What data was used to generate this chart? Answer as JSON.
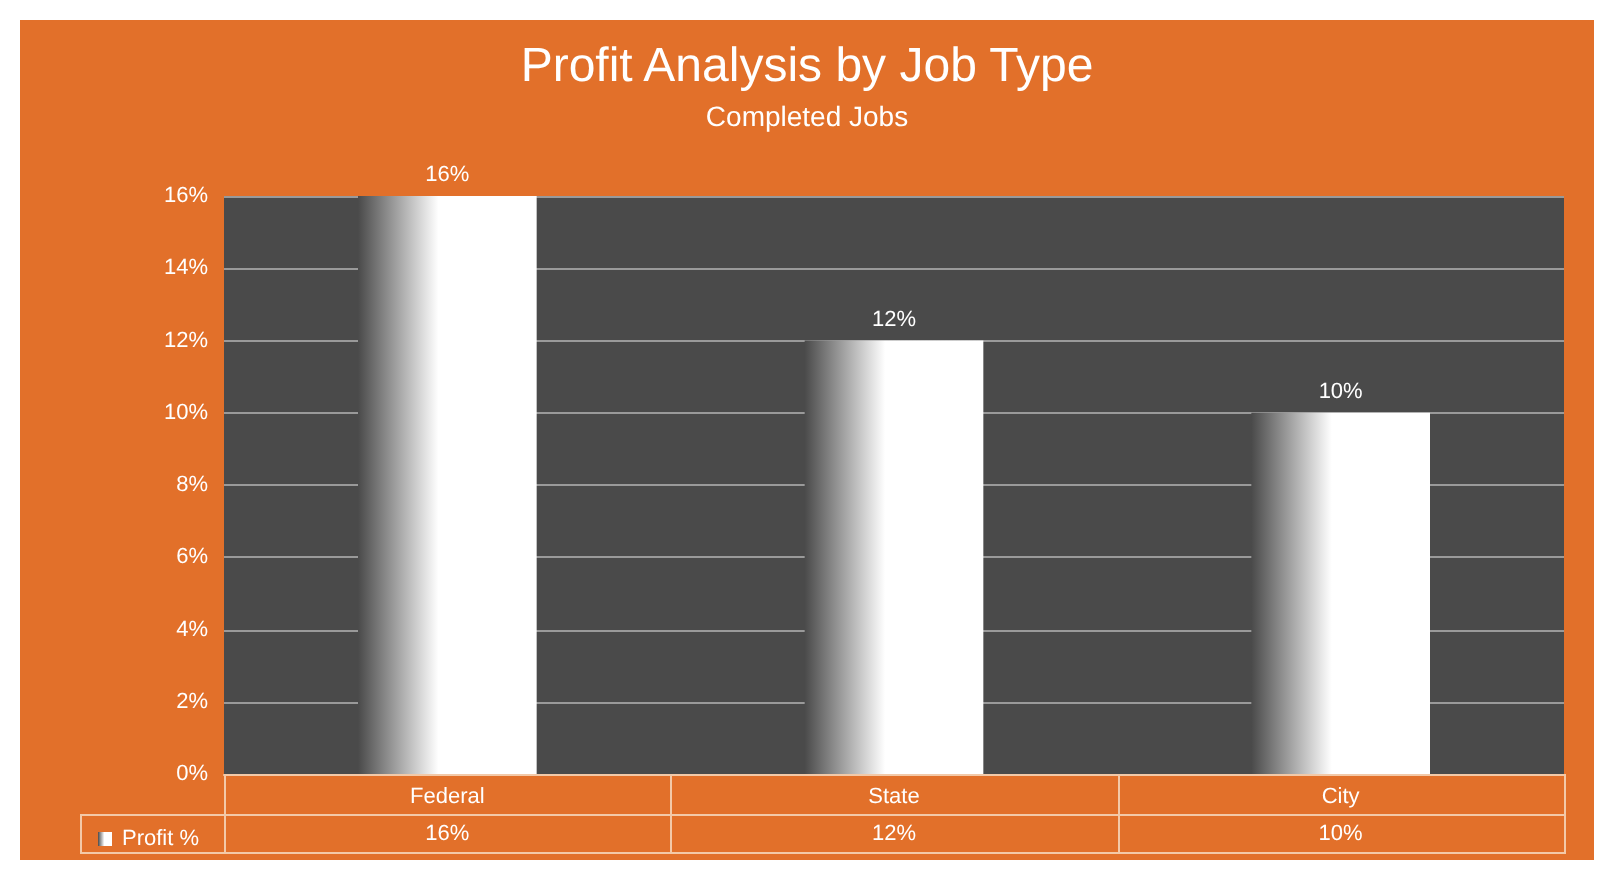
{
  "chart_data": {
    "type": "bar",
    "title": "Profit Analysis by Job Type",
    "subtitle": "Completed Jobs",
    "categories": [
      "Federal",
      "State",
      "City"
    ],
    "series": [
      {
        "name": "Profit %",
        "color": "#ffffff",
        "values": [
          16,
          12,
          10
        ],
        "value_labels": [
          "16%",
          "12%",
          "10%"
        ]
      }
    ],
    "ylim": [
      0,
      16
    ],
    "yticks": [
      {
        "value": 0,
        "label": "0%"
      },
      {
        "value": 2,
        "label": "2%"
      },
      {
        "value": 4,
        "label": "4%"
      },
      {
        "value": 6,
        "label": "6%"
      },
      {
        "value": 8,
        "label": "8%"
      },
      {
        "value": 10,
        "label": "10%"
      },
      {
        "value": 12,
        "label": "12%"
      },
      {
        "value": 14,
        "label": "14%"
      },
      {
        "value": 16,
        "label": "16%"
      }
    ],
    "grid": "y",
    "legend": "bottom left"
  }
}
